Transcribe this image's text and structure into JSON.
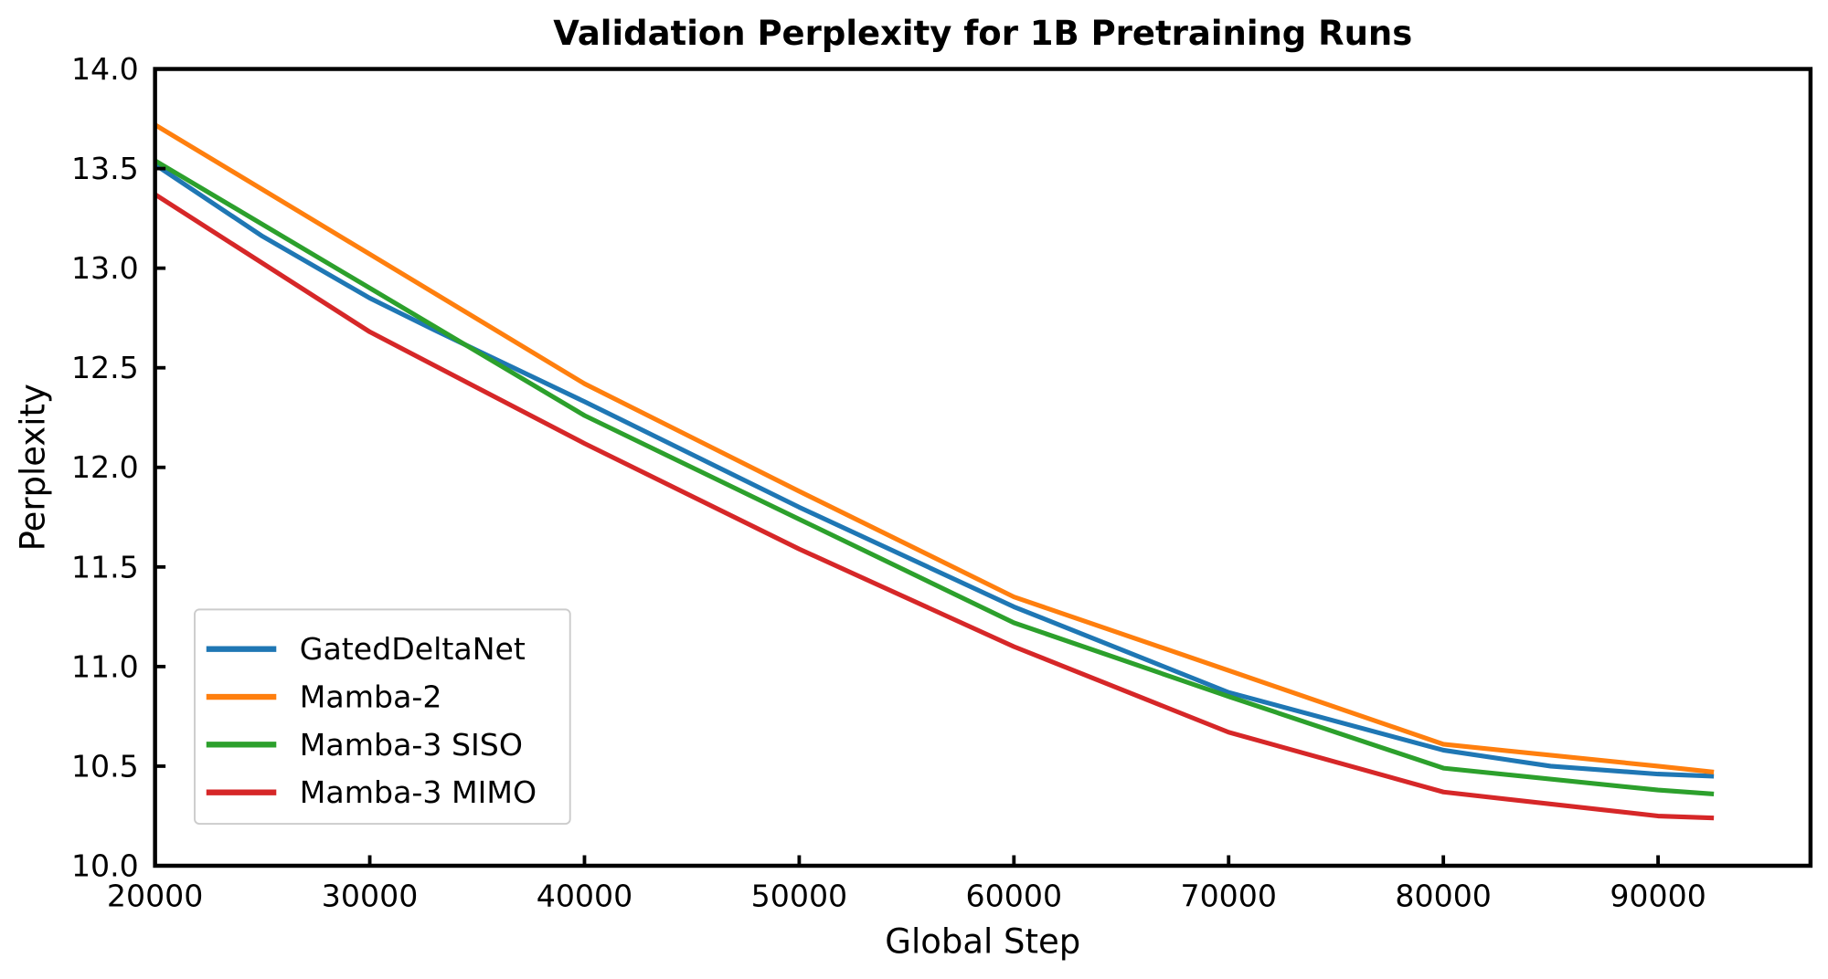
{
  "chart_data": {
    "type": "line",
    "title": "Validation Perplexity for 1B Pretraining Runs",
    "xlabel": "Global Step",
    "ylabel": "Perplexity",
    "xlim": [
      20000,
      97100
    ],
    "ylim": [
      10.0,
      14.0
    ],
    "xticks": [
      "20000",
      "30000",
      "40000",
      "50000",
      "60000",
      "70000",
      "80000",
      "90000"
    ],
    "yticks": [
      "10.0",
      "10.5",
      "11.0",
      "11.5",
      "12.0",
      "12.5",
      "13.0",
      "13.5",
      "14.0"
    ],
    "grid": false,
    "legend": "lower-left",
    "series": [
      {
        "name": "GatedDeltaNet",
        "color": "#1f77b4",
        "x": [
          20000,
          25000,
          30000,
          33000,
          40000,
          50000,
          60000,
          70000,
          80000,
          85000,
          90000,
          92600
        ],
        "y": [
          13.52,
          13.16,
          12.85,
          12.69,
          12.33,
          11.8,
          11.3,
          10.87,
          10.58,
          10.5,
          10.46,
          10.45
        ]
      },
      {
        "name": "Mamba-2",
        "color": "#ff7f0e",
        "x": [
          20000,
          30000,
          40000,
          50000,
          60000,
          70000,
          80000,
          90000,
          92600
        ],
        "y": [
          13.72,
          13.07,
          12.42,
          11.88,
          11.35,
          10.98,
          10.61,
          10.5,
          10.47
        ]
      },
      {
        "name": "Mamba-3 SISO",
        "color": "#2ca02c",
        "x": [
          20000,
          30000,
          40000,
          50000,
          60000,
          70000,
          80000,
          90000,
          92600
        ],
        "y": [
          13.54,
          12.9,
          12.26,
          11.74,
          11.22,
          10.85,
          10.49,
          10.38,
          10.36
        ]
      },
      {
        "name": "Mamba-3 MIMO",
        "color": "#d62728",
        "x": [
          20000,
          30000,
          40000,
          50000,
          60000,
          70000,
          80000,
          90000,
          92600
        ],
        "y": [
          13.37,
          12.68,
          12.12,
          11.59,
          11.1,
          10.67,
          10.37,
          10.25,
          10.24
        ]
      }
    ]
  }
}
